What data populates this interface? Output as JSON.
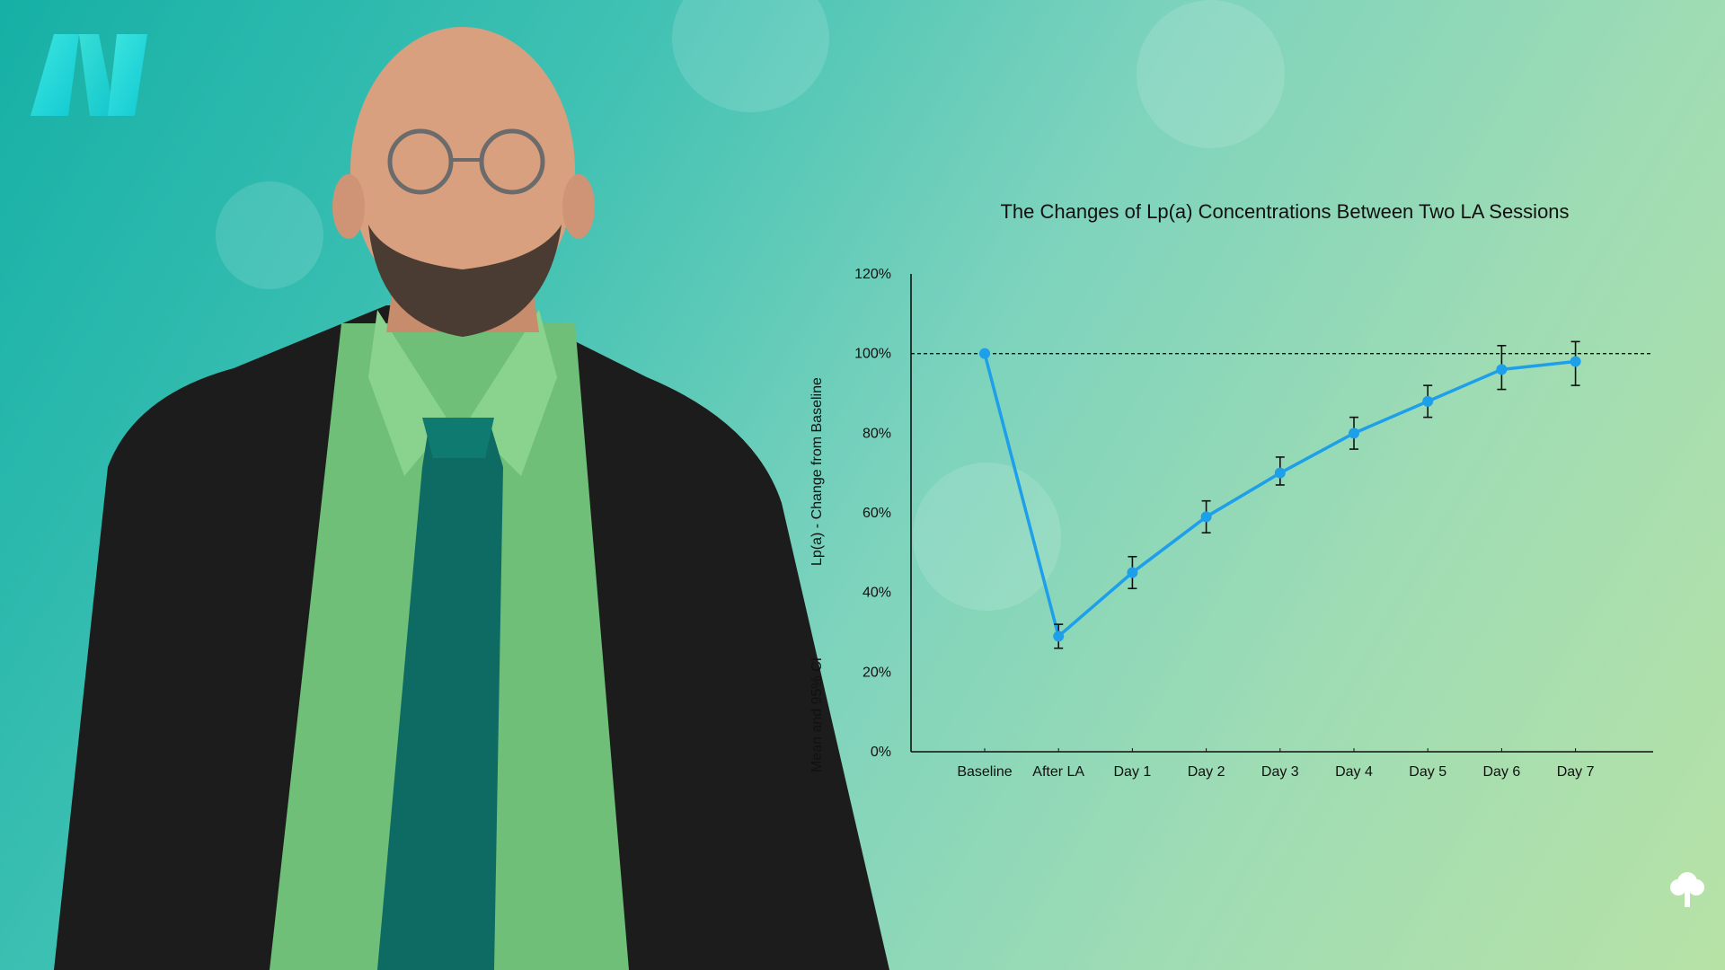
{
  "brand": {
    "logo_icon": "brand-logo-icon",
    "tree_icon": "tree-icon"
  },
  "colors": {
    "line": "#1e9fea",
    "marker": "#1e9fea",
    "errorbar": "#111111",
    "reference": "#111111"
  },
  "chart_data": {
    "type": "line",
    "title": "The Changes of Lp(a) Concentrations Between Two LA Sessions",
    "ylabel_line1": "Mean and 95% CI",
    "ylabel_line2": "Lp(a) - Change from Baseline",
    "xlabel": "",
    "categories": [
      "Baseline",
      "After LA",
      "Day 1",
      "Day 2",
      "Day 3",
      "Day 4",
      "Day 5",
      "Day 6",
      "Day 7"
    ],
    "values": [
      100,
      29,
      45,
      59,
      70,
      80,
      88,
      96,
      98
    ],
    "ci_lower": [
      100,
      26,
      41,
      55,
      67,
      76,
      84,
      91,
      92
    ],
    "ci_upper": [
      100,
      32,
      49,
      63,
      74,
      84,
      92,
      102,
      103
    ],
    "ylim": [
      0,
      120
    ],
    "yticks": [
      "0%",
      "20%",
      "40%",
      "60%",
      "80%",
      "100%",
      "120%"
    ],
    "reference_line": 100,
    "grid": false,
    "legend": "none"
  }
}
